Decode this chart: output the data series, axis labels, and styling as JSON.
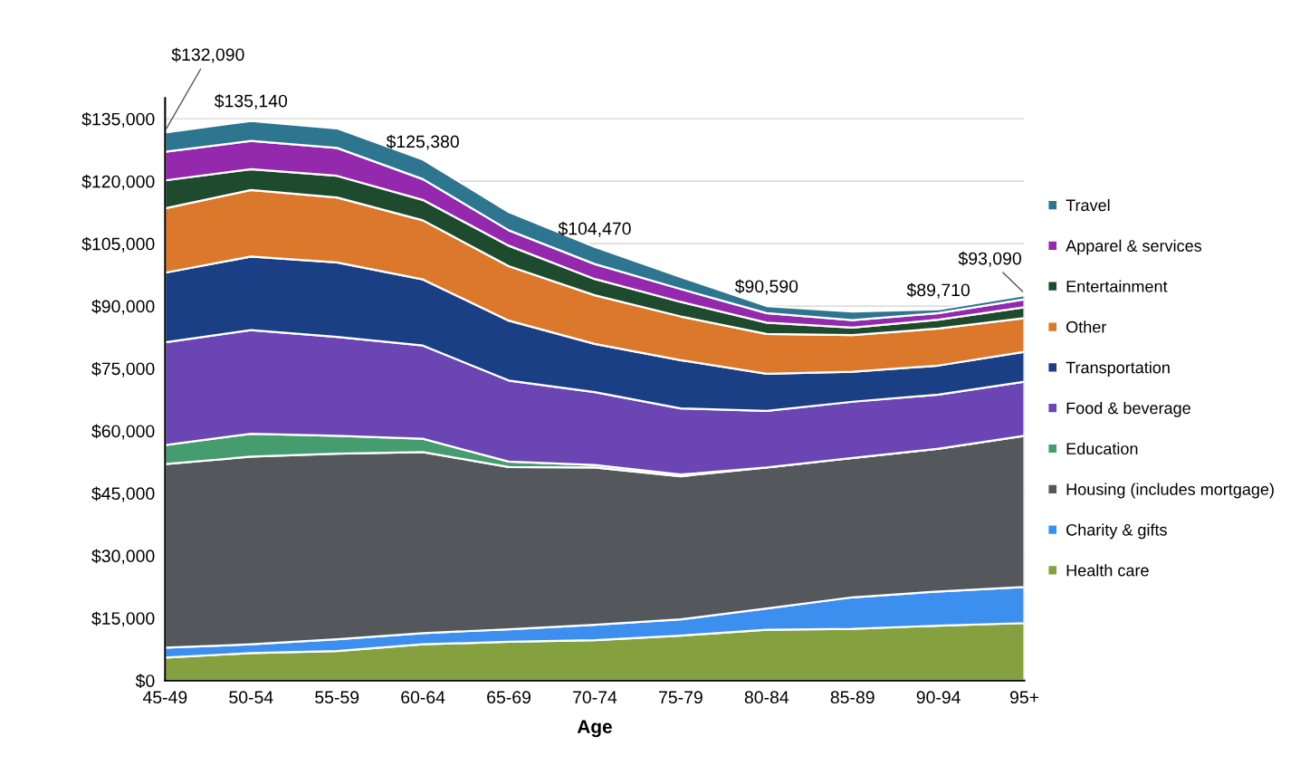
{
  "chart_data": {
    "type": "area",
    "stacked": true,
    "xlabel": "Age",
    "categories": [
      "45-49",
      "50-54",
      "55-59",
      "60-64",
      "65-69",
      "70-74",
      "75-79",
      "80-84",
      "85-89",
      "90-94",
      "95+"
    ],
    "series": [
      {
        "name": "Health care",
        "color": "#84a03f",
        "values": [
          5500,
          6600,
          7100,
          8700,
          9300,
          9700,
          10800,
          12200,
          12400,
          13200,
          13800
        ]
      },
      {
        "name": "Charity & gifts",
        "color": "#3d8fef",
        "values": [
          2400,
          2100,
          2800,
          2700,
          3000,
          3700,
          3900,
          5100,
          7600,
          8200,
          8700
        ]
      },
      {
        "name": "Housing (includes mortgage)",
        "color": "#54585c",
        "values": [
          44100,
          45100,
          44600,
          43500,
          39000,
          37800,
          34400,
          33900,
          33500,
          34300,
          36300
        ]
      },
      {
        "name": "Education",
        "color": "#459c6e",
        "values": [
          4600,
          5500,
          4300,
          3200,
          1300,
          600,
          400,
          0,
          0,
          0,
          0
        ]
      },
      {
        "name": "Food & beverage",
        "color": "#6a45b3",
        "values": [
          24700,
          24900,
          23800,
          22400,
          19500,
          17500,
          15900,
          13600,
          13500,
          13000,
          13000
        ]
      },
      {
        "name": "Transportation",
        "color": "#1a3f84",
        "values": [
          16700,
          17700,
          17900,
          15900,
          14400,
          11600,
          11600,
          8900,
          7200,
          7000,
          7200
        ]
      },
      {
        "name": "Other",
        "color": "#dc782c",
        "values": [
          15500,
          16000,
          15600,
          14200,
          13100,
          11700,
          10500,
          9600,
          8800,
          8900,
          8100
        ]
      },
      {
        "name": "Entertainment",
        "color": "#1e4a2e",
        "values": [
          6700,
          5000,
          5200,
          4900,
          4900,
          3900,
          3500,
          2700,
          1800,
          2100,
          2600
        ]
      },
      {
        "name": "Apparel & services",
        "color": "#9429ad",
        "values": [
          6900,
          6800,
          6700,
          5000,
          3700,
          3600,
          3100,
          2300,
          1800,
          1600,
          1900
        ]
      },
      {
        "name": "Travel",
        "color": "#2e7590",
        "values": [
          4600,
          4800,
          4700,
          4700,
          4400,
          4100,
          2900,
          1700,
          2100,
          900,
          1000
        ]
      }
    ],
    "ylim": [
      0,
      140000
    ],
    "yticks": [
      {
        "value": 0,
        "label": "$0"
      },
      {
        "value": 15000,
        "label": "$15,000"
      },
      {
        "value": 30000,
        "label": "$30,000"
      },
      {
        "value": 45000,
        "label": "$45,000"
      },
      {
        "value": 60000,
        "label": "$60,000"
      },
      {
        "value": 75000,
        "label": "$75,000"
      },
      {
        "value": 90000,
        "label": "$90,000"
      },
      {
        "value": 105000,
        "label": "$105,000"
      },
      {
        "value": 120000,
        "label": "$120,000"
      },
      {
        "value": 135000,
        "label": "$135,000"
      }
    ],
    "grid": "y",
    "legend": "right",
    "annotations": [
      {
        "text": "$132,090",
        "x": "45-49",
        "y": 132090
      },
      {
        "text": "$135,140",
        "x": "50-54",
        "y": 135140
      },
      {
        "text": "$125,380",
        "x": "60-64",
        "y": 125380
      },
      {
        "text": "$104,470",
        "x": "70-74",
        "y": 104470
      },
      {
        "text": "$90,590",
        "x": "80-84",
        "y": 90590
      },
      {
        "text": "$89,710",
        "x": "90-94",
        "y": 89710
      },
      {
        "text": "$93,090",
        "x": "95+",
        "y": 93090
      }
    ]
  }
}
